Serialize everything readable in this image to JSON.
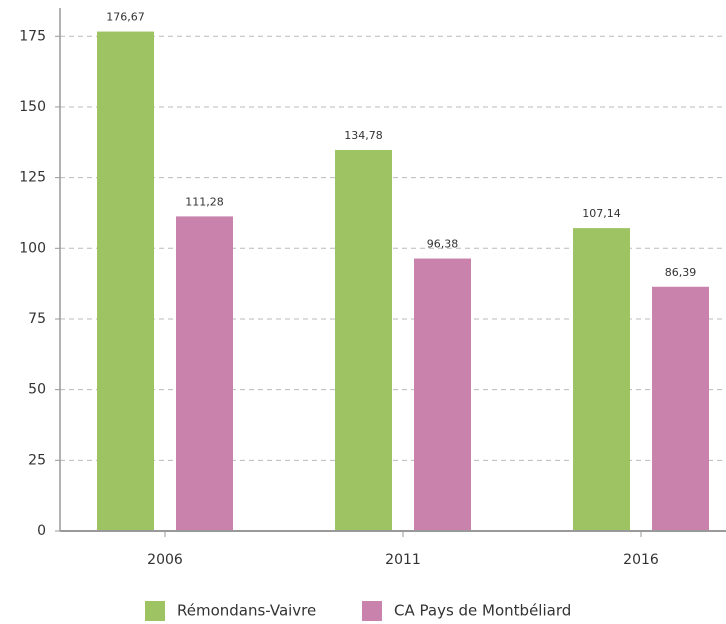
{
  "chart_data": {
    "type": "bar",
    "categories": [
      "2006",
      "2011",
      "2016"
    ],
    "series": [
      {
        "name": "Rémondans-Vaivre",
        "color": "#9dc363",
        "values": [
          176.67,
          134.78,
          107.14
        ],
        "value_labels": [
          "176,67",
          "134,78",
          "107,14"
        ]
      },
      {
        "name": "CA Pays de Montbéliard",
        "color": "#c882ab",
        "values": [
          111.28,
          96.38,
          86.39
        ],
        "value_labels": [
          "111,28",
          "96,38",
          "86,39"
        ]
      }
    ],
    "ylim": [
      0,
      185
    ],
    "yticks": [
      0,
      25,
      50,
      75,
      100,
      125,
      150,
      175
    ],
    "grid": true,
    "legend": "bottom"
  }
}
